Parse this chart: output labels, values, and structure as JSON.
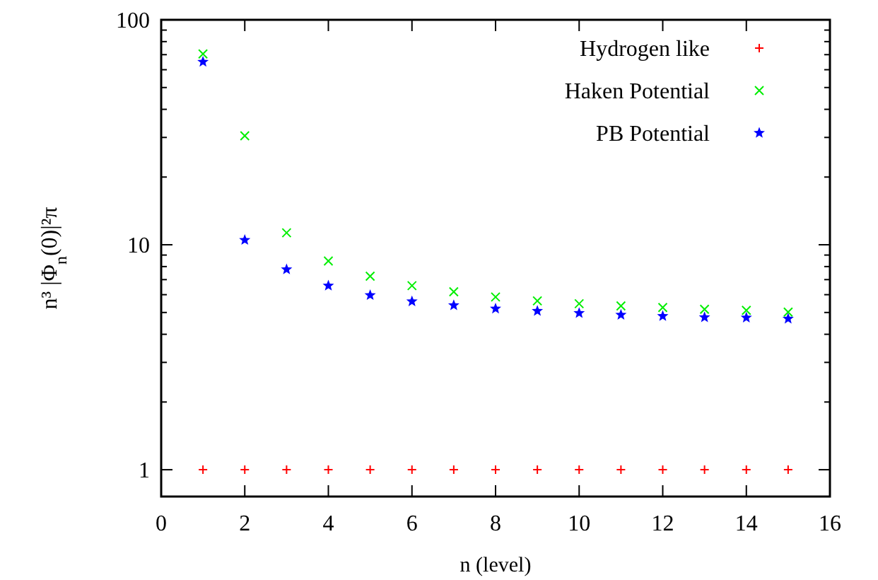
{
  "chart_data": {
    "type": "scatter",
    "xlabel": "n (level)",
    "ylabel": "n³ |Φ$_{n}$(0)|²π",
    "log": "y",
    "xlim": [
      0,
      16
    ],
    "xticks": [
      0,
      2,
      4,
      6,
      8,
      10,
      12,
      14,
      16
    ],
    "ylim": [
      0.76,
      100
    ],
    "yticks": [
      1,
      {
        "value": 2,
        "label": null
      },
      {
        "value": 3,
        "label": null
      },
      {
        "value": 4,
        "label": null
      },
      {
        "value": 5,
        "label": null
      },
      {
        "value": 6,
        "label": null
      },
      {
        "value": 7,
        "label": null
      },
      {
        "value": 8,
        "label": null
      },
      {
        "value": 9,
        "label": null
      },
      10,
      {
        "value": 20,
        "label": null
      },
      {
        "value": 30,
        "label": null
      },
      {
        "value": 40,
        "label": null
      },
      {
        "value": 50,
        "label": null
      },
      {
        "value": 60,
        "label": null
      },
      {
        "value": 70,
        "label": null
      },
      {
        "value": 80,
        "label": null
      },
      {
        "value": 90,
        "label": null
      },
      100
    ],
    "grid": false,
    "legend": "top right",
    "x": [
      1,
      2,
      3,
      4,
      5,
      6,
      7,
      8,
      9,
      10,
      11,
      12,
      13,
      14,
      15
    ],
    "series": [
      {
        "name": "Hydrogen like",
        "color": "#ff0000",
        "marker": "plus",
        "values": [
          1,
          1,
          1,
          1,
          1,
          1,
          1,
          1,
          1,
          1,
          1,
          1,
          1,
          1,
          1
        ]
      },
      {
        "name": "Haken Potential",
        "color": "#00ee00",
        "marker": "cross",
        "values": [
          70.5,
          30.5,
          11.3,
          8.47,
          7.25,
          6.58,
          6.18,
          5.86,
          5.63,
          5.47,
          5.35,
          5.26,
          5.17,
          5.11,
          5.02
        ]
      },
      {
        "name": "PB Potential",
        "color": "#0000ff",
        "marker": "star",
        "values": [
          65,
          10.5,
          7.77,
          6.58,
          5.97,
          5.6,
          5.38,
          5.2,
          5.08,
          4.97,
          4.88,
          4.82,
          4.76,
          4.74,
          4.69
        ]
      }
    ]
  }
}
